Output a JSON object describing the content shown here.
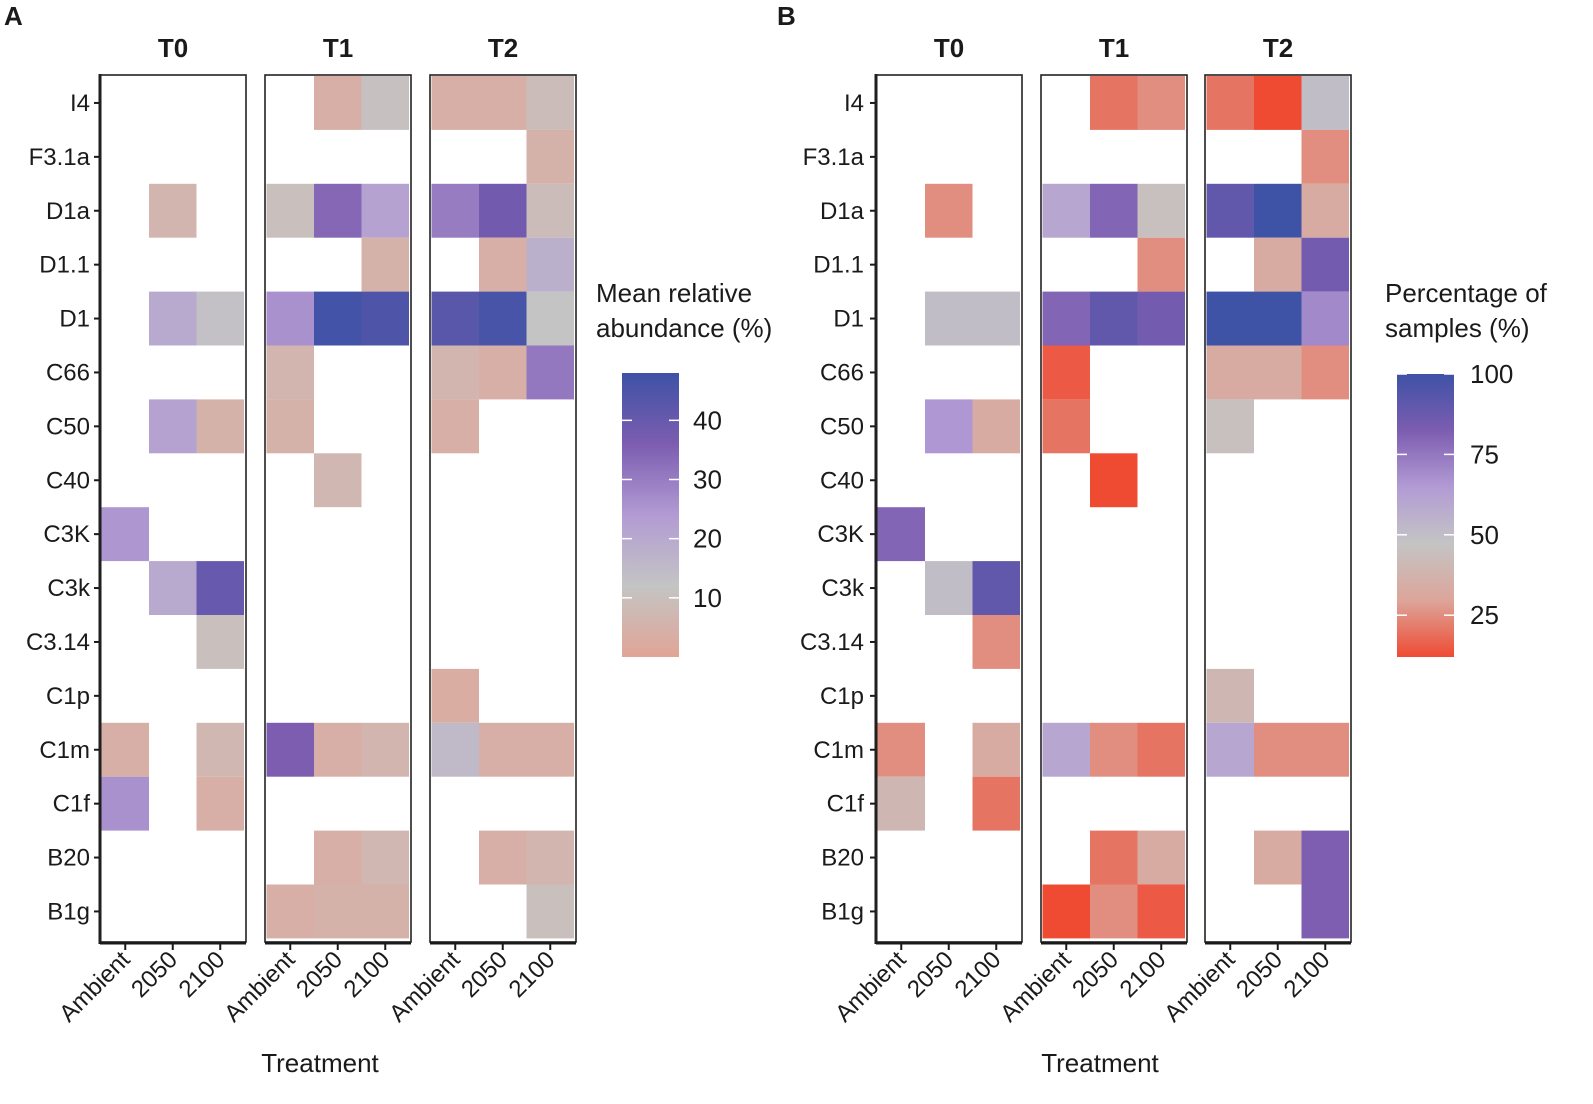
{
  "chart_data": [
    {
      "type": "heatmap",
      "panel_label": "A",
      "xlabel": "Treatment",
      "ylabel": "",
      "facets": [
        "T0",
        "T1",
        "T2"
      ],
      "categories": [
        "Ambient",
        "2050",
        "2100"
      ],
      "rows": [
        "I4",
        "F3.1a",
        "D1a",
        "D1.1",
        "D1",
        "C66",
        "C50",
        "C40",
        "C3K",
        "C3k",
        "C3.14",
        "C1p",
        "C1m",
        "C1f",
        "B20",
        "B1g"
      ],
      "values": {
        "T0": [
          [
            null,
            null,
            null
          ],
          [
            null,
            null,
            null
          ],
          [
            null,
            6,
            null
          ],
          [
            null,
            null,
            null
          ],
          [
            null,
            20,
            13
          ],
          [
            null,
            null,
            null
          ],
          [
            null,
            22,
            5
          ],
          [
            null,
            null,
            null
          ],
          [
            25,
            null,
            null
          ],
          [
            null,
            20,
            40
          ],
          [
            null,
            null,
            10
          ],
          [
            null,
            null,
            null
          ],
          [
            4,
            null,
            7
          ],
          [
            26,
            null,
            4
          ],
          [
            null,
            null,
            null
          ],
          [
            null,
            null,
            null
          ]
        ],
        "T1": [
          [
            null,
            4,
            11
          ],
          [
            null,
            null,
            null
          ],
          [
            10,
            34,
            22
          ],
          [
            null,
            null,
            5
          ],
          [
            26,
            47,
            45
          ],
          [
            6,
            null,
            null
          ],
          [
            5,
            null,
            null
          ],
          [
            null,
            7,
            null
          ],
          [
            null,
            null,
            null
          ],
          [
            null,
            null,
            null
          ],
          [
            null,
            null,
            null
          ],
          [
            null,
            null,
            null
          ],
          [
            36,
            4,
            6
          ],
          [
            null,
            null,
            null
          ],
          [
            null,
            4,
            7
          ],
          [
            4,
            5,
            5
          ]
        ],
        "T2": [
          [
            4,
            4,
            9
          ],
          [
            null,
            null,
            5
          ],
          [
            30,
            38,
            9
          ],
          [
            null,
            4,
            18
          ],
          [
            43,
            46,
            12
          ],
          [
            6,
            4,
            31
          ],
          [
            4,
            null,
            null
          ],
          [
            null,
            null,
            null
          ],
          [
            null,
            null,
            null
          ],
          [
            null,
            null,
            null
          ],
          [
            null,
            null,
            null
          ],
          [
            3,
            null,
            null
          ],
          [
            15,
            4,
            4
          ],
          [
            null,
            null,
            null
          ],
          [
            null,
            4,
            6
          ],
          [
            null,
            null,
            10
          ]
        ]
      },
      "legend": {
        "title_lines": [
          "Mean relative",
          "abundance (%)"
        ],
        "ticks": [
          10,
          20,
          30,
          40
        ],
        "min": 0,
        "max": 48,
        "colors": [
          "#e0a597",
          "#c4c4c4",
          "#b29bd4",
          "#7c5db0",
          "#3e52a6"
        ]
      }
    },
    {
      "type": "heatmap",
      "panel_label": "B",
      "xlabel": "Treatment",
      "ylabel": "",
      "facets": [
        "T0",
        "T1",
        "T2"
      ],
      "categories": [
        "Ambient",
        "2050",
        "2100"
      ],
      "rows": [
        "I4",
        "F3.1a",
        "D1a",
        "D1.1",
        "D1",
        "C66",
        "C50",
        "C40",
        "C3K",
        "C3k",
        "C3.14",
        "C1p",
        "C1m",
        "C1f",
        "B20",
        "B1g"
      ],
      "values": {
        "T0": [
          [
            null,
            null,
            null
          ],
          [
            null,
            null,
            null
          ],
          [
            null,
            25,
            null
          ],
          [
            null,
            null,
            null
          ],
          [
            null,
            50,
            50
          ],
          [
            null,
            null,
            null
          ],
          [
            null,
            66,
            33
          ],
          [
            null,
            null,
            null
          ],
          [
            80,
            null,
            null
          ],
          [
            null,
            50,
            90
          ],
          [
            null,
            null,
            25
          ],
          [
            null,
            null,
            null
          ],
          [
            25,
            null,
            33
          ],
          [
            40,
            null,
            20
          ],
          [
            null,
            null,
            null
          ],
          [
            null,
            null,
            null
          ]
        ],
        "T1": [
          [
            null,
            20,
            25
          ],
          [
            null,
            null,
            null
          ],
          [
            60,
            80,
            45
          ],
          [
            null,
            null,
            25
          ],
          [
            80,
            90,
            85
          ],
          [
            15,
            null,
            null
          ],
          [
            20,
            null,
            null
          ],
          [
            null,
            10,
            null
          ],
          [
            null,
            null,
            null
          ],
          [
            null,
            null,
            null
          ],
          [
            null,
            null,
            null
          ],
          [
            null,
            null,
            null
          ],
          [
            60,
            25,
            20
          ],
          [
            null,
            null,
            null
          ],
          [
            null,
            20,
            33
          ],
          [
            10,
            25,
            15
          ]
        ],
        "T2": [
          [
            20,
            10,
            50
          ],
          [
            null,
            null,
            25
          ],
          [
            90,
            100,
            33
          ],
          [
            null,
            33,
            85
          ],
          [
            100,
            100,
            70
          ],
          [
            33,
            33,
            25
          ],
          [
            45,
            null,
            null
          ],
          [
            null,
            null,
            null
          ],
          [
            null,
            null,
            null
          ],
          [
            null,
            null,
            null
          ],
          [
            null,
            null,
            null
          ],
          [
            40,
            null,
            null
          ],
          [
            60,
            25,
            25
          ],
          [
            null,
            null,
            null
          ],
          [
            null,
            33,
            82
          ],
          [
            null,
            null,
            82
          ]
        ]
      },
      "legend": {
        "title_lines": [
          "Percentage of",
          "samples (%)"
        ],
        "ticks": [
          25,
          50,
          75,
          100
        ],
        "min": 12,
        "max": 100,
        "colors": [
          "#ef4b33",
          "#dca59a",
          "#c4c4c4",
          "#b29bd4",
          "#7c5db0",
          "#3e52a6"
        ]
      }
    }
  ]
}
